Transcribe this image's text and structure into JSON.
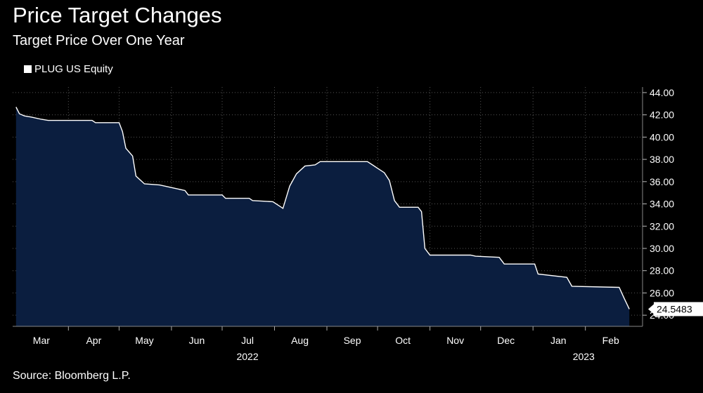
{
  "header": {
    "title": "Price Target Changes",
    "subtitle": "Target Price Over One Year"
  },
  "legend": {
    "label": "PLUG US Equity"
  },
  "footer": {
    "source": "Source: Bloomberg L.P."
  },
  "colors": {
    "background": "#000000",
    "area_fill": "#0b1e3f",
    "line": "#ffffff",
    "grid": "#555555"
  },
  "chart_data": {
    "type": "area",
    "series": [
      {
        "name": "PLUG US Equity",
        "x": [
          "2022-03-01",
          "2022-03-03",
          "2022-03-06",
          "2022-03-10",
          "2022-03-16",
          "2022-03-20",
          "2022-04-15",
          "2022-04-17",
          "2022-05-01",
          "2022-05-03",
          "2022-05-05",
          "2022-05-09",
          "2022-05-11",
          "2022-05-16",
          "2022-05-25",
          "2022-06-03",
          "2022-06-09",
          "2022-06-11",
          "2022-07-01",
          "2022-07-03",
          "2022-07-17",
          "2022-07-19",
          "2022-07-31",
          "2022-08-04",
          "2022-08-06",
          "2022-08-10",
          "2022-08-14",
          "2022-08-19",
          "2022-08-25",
          "2022-08-28",
          "2022-09-25",
          "2022-09-28",
          "2022-10-01",
          "2022-10-05",
          "2022-10-08",
          "2022-10-11",
          "2022-10-14",
          "2022-10-25",
          "2022-10-27",
          "2022-10-29",
          "2022-11-01",
          "2022-11-25",
          "2022-11-28",
          "2022-12-12",
          "2022-12-15",
          "2023-01-02",
          "2023-01-04",
          "2023-01-21",
          "2023-01-24",
          "2023-02-21",
          "2023-02-24",
          "2023-02-27"
        ],
        "values": [
          42.7,
          42.1,
          41.9,
          41.8,
          41.6,
          41.5,
          41.5,
          41.3,
          41.3,
          40.5,
          39.0,
          38.3,
          36.5,
          35.8,
          35.7,
          35.4,
          35.2,
          34.8,
          34.8,
          34.5,
          34.5,
          34.3,
          34.2,
          33.8,
          33.6,
          35.6,
          36.7,
          37.4,
          37.5,
          37.8,
          37.8,
          37.5,
          37.2,
          36.8,
          36.1,
          34.3,
          33.7,
          33.7,
          33.3,
          30.0,
          29.4,
          29.4,
          29.3,
          29.2,
          28.6,
          28.6,
          27.7,
          27.4,
          26.6,
          26.5,
          25.5,
          24.5483
        ]
      }
    ],
    "last_value_label": "24.5483",
    "y_ticks": [
      "44.00",
      "42.00",
      "40.00",
      "38.00",
      "36.00",
      "34.00",
      "32.00",
      "30.00",
      "28.00",
      "26.00",
      "24.00"
    ],
    "ylim": [
      23.0,
      44.5
    ],
    "month_labels": [
      {
        "label": "Mar",
        "date": "2022-03-16"
      },
      {
        "label": "Apr",
        "date": "2022-04-16"
      },
      {
        "label": "May",
        "date": "2022-05-16"
      },
      {
        "label": "Jun",
        "date": "2022-06-16"
      },
      {
        "label": "Jul",
        "date": "2022-07-16"
      },
      {
        "label": "Aug",
        "date": "2022-08-16"
      },
      {
        "label": "Sep",
        "date": "2022-09-16"
      },
      {
        "label": "Oct",
        "date": "2022-10-16"
      },
      {
        "label": "Nov",
        "date": "2022-11-16"
      },
      {
        "label": "Dec",
        "date": "2022-12-16"
      },
      {
        "label": "Jan",
        "date": "2023-01-16"
      },
      {
        "label": "Feb",
        "date": "2023-02-16"
      }
    ],
    "month_boundaries": [
      "2022-04-01",
      "2022-05-01",
      "2022-06-01",
      "2022-07-01",
      "2022-08-01",
      "2022-09-01",
      "2022-10-01",
      "2022-11-01",
      "2022-12-01",
      "2023-01-01",
      "2023-02-01"
    ],
    "year_labels": [
      {
        "label": "2022",
        "date": "2022-07-16"
      },
      {
        "label": "2023",
        "date": "2023-01-31"
      }
    ],
    "xlim": [
      "2022-02-27",
      "2023-03-06"
    ],
    "grid": true,
    "legend_position": "top-left"
  }
}
